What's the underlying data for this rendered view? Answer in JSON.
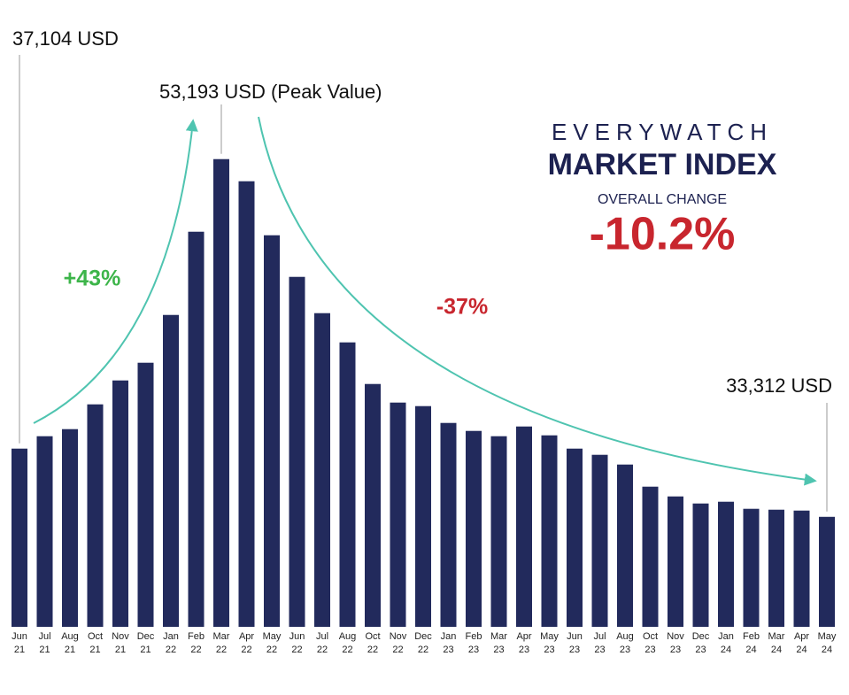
{
  "chart_data": {
    "type": "bar",
    "brand": "EVERYWATCH",
    "title": "MARKET INDEX",
    "subtitle": "OVERALL CHANGE",
    "overall_change": "-10.2%",
    "annotations": [
      "+43%",
      "-37%"
    ],
    "categories": [
      "Jun 21",
      "Jul 21",
      "Aug 21",
      "Oct 21",
      "Nov 21",
      "Dec 21",
      "Jan 22",
      "Feb 22",
      "Mar 22",
      "Apr 22",
      "May 22",
      "Jun 22",
      "Jul 22",
      "Aug 22",
      "Oct 22",
      "Nov 22",
      "Dec 22",
      "Jan 23",
      "Feb 23",
      "Mar 23",
      "Apr 23",
      "May 23",
      "Jun 23",
      "Jul 23",
      "Aug 23",
      "Oct 23",
      "Nov 23",
      "Dec 23",
      "Jan 24",
      "Feb 24",
      "Mar 24",
      "Apr 24",
      "May 24"
    ],
    "values": [
      37104,
      37793,
      38187,
      39564,
      40893,
      41877,
      44533,
      49158,
      53193,
      51963,
      48961,
      46649,
      44632,
      43008,
      40696,
      39663,
      39466,
      38531,
      38088,
      37793,
      38334,
      37842,
      37104,
      36760,
      36219,
      34989,
      34447,
      34054,
      34152,
      33759,
      33709,
      33660,
      33312
    ],
    "value_labels": [
      "37,104 USD",
      null,
      null,
      null,
      null,
      null,
      null,
      null,
      "53,193 USD (Peak Value)",
      null,
      null,
      null,
      null,
      null,
      null,
      null,
      null,
      null,
      null,
      null,
      null,
      null,
      null,
      null,
      null,
      null,
      null,
      null,
      null,
      null,
      null,
      null,
      "33,312 USD"
    ],
    "color": "#222a5c",
    "ylim": [
      27200,
      55000
    ]
  }
}
